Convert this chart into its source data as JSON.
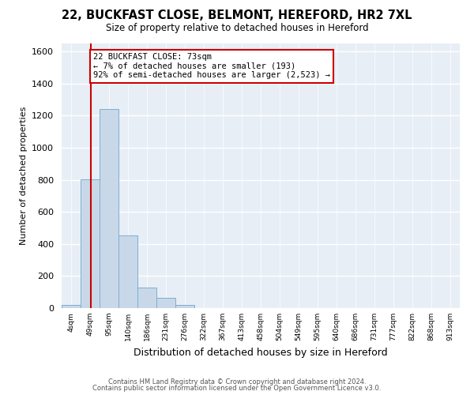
{
  "title1": "22, BUCKFAST CLOSE, BELMONT, HEREFORD, HR2 7XL",
  "title2": "Size of property relative to detached houses in Hereford",
  "xlabel": "Distribution of detached houses by size in Hereford",
  "ylabel": "Number of detached properties",
  "bin_labels": [
    "4sqm",
    "49sqm",
    "95sqm",
    "140sqm",
    "186sqm",
    "231sqm",
    "276sqm",
    "322sqm",
    "367sqm",
    "413sqm",
    "458sqm",
    "504sqm",
    "549sqm",
    "595sqm",
    "640sqm",
    "686sqm",
    "731sqm",
    "777sqm",
    "822sqm",
    "868sqm",
    "913sqm"
  ],
  "bar_heights": [
    20,
    805,
    1240,
    455,
    130,
    62,
    22,
    0,
    0,
    0,
    0,
    0,
    0,
    0,
    0,
    0,
    0,
    0,
    0,
    0,
    0
  ],
  "bar_color": "#c8d8e8",
  "bar_edge_color": "#7bafd4",
  "property_line_x": 73,
  "bin_edges_sqm": [
    4,
    49,
    95,
    140,
    186,
    231,
    276,
    322,
    367,
    413,
    458,
    504,
    549,
    595,
    640,
    686,
    731,
    777,
    822,
    868,
    913
  ],
  "annotation_title": "22 BUCKFAST CLOSE: 73sqm",
  "annotation_line1": "← 7% of detached houses are smaller (193)",
  "annotation_line2": "92% of semi-detached houses are larger (2,523) →",
  "annotation_box_color": "#ffffff",
  "annotation_box_edge": "#cc0000",
  "vline_color": "#cc0000",
  "ylim": [
    0,
    1650
  ],
  "yticks": [
    0,
    200,
    400,
    600,
    800,
    1000,
    1200,
    1400,
    1600
  ],
  "footer1": "Contains HM Land Registry data © Crown copyright and database right 2024.",
  "footer2": "Contains public sector information licensed under the Open Government Licence v3.0.",
  "bg_color": "#ffffff",
  "plot_bg_color": "#e8eef5"
}
